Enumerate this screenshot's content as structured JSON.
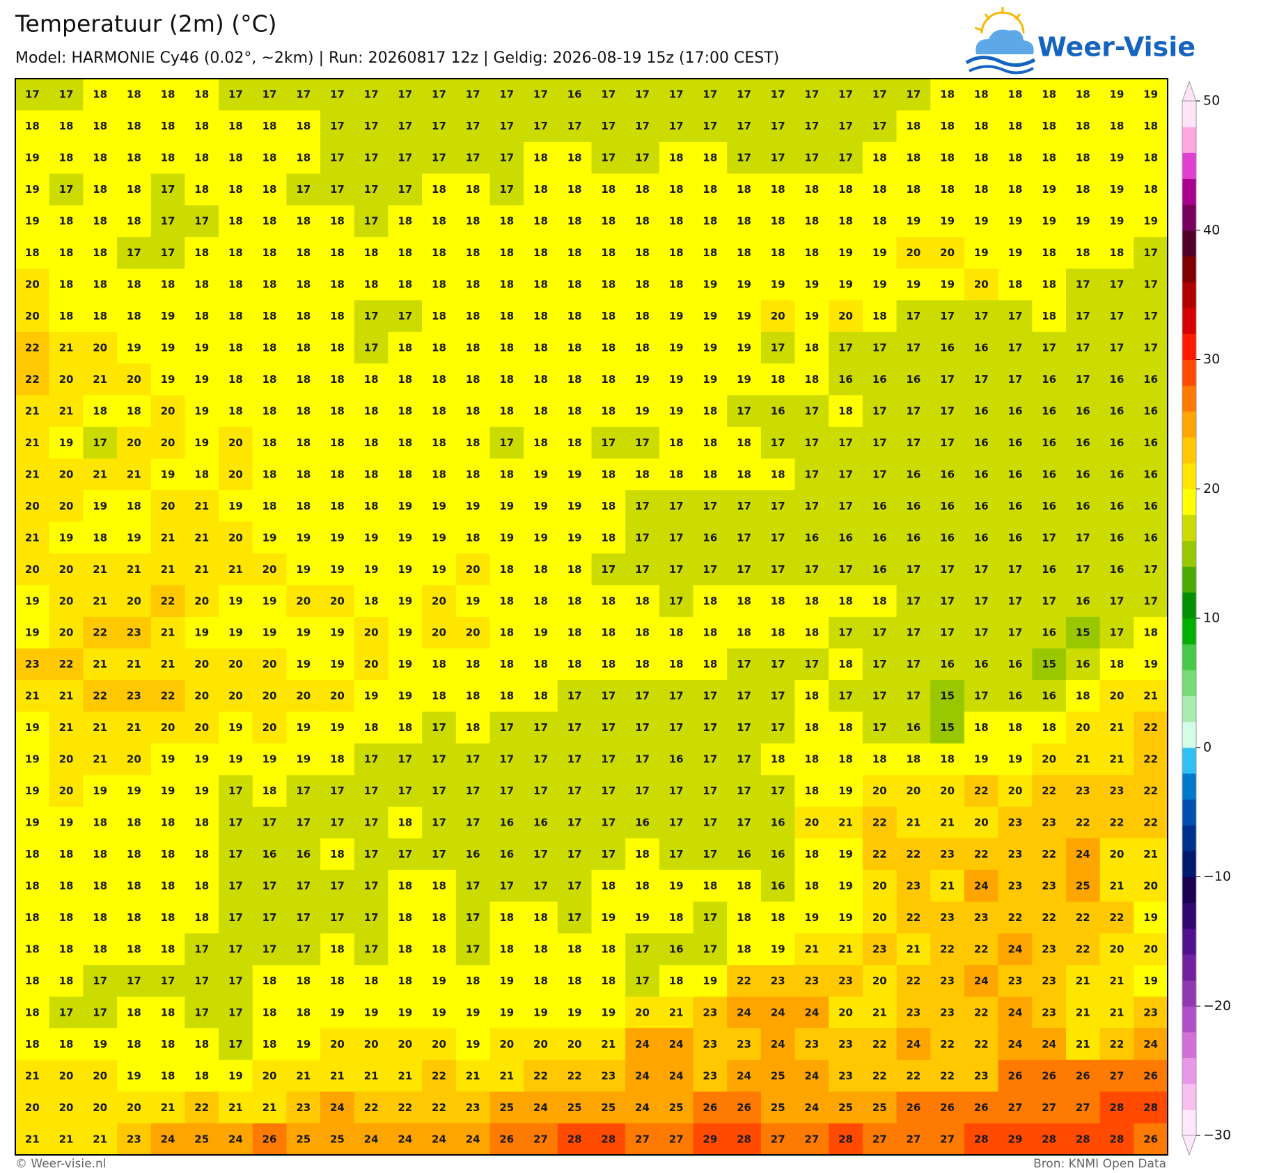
{
  "header": {
    "title": "Temperatuur (2m) (°C)",
    "subtitle": "Model: HARMONIE Cy46 (0.02°, ~2km)  |  Run: 20260817 12z  |  Geldig: 2026-08-19 15z (17:00 CEST)"
  },
  "logo": {
    "text": "Weer-Visie"
  },
  "grid": {
    "rows": [
      [
        17,
        17,
        18,
        18,
        18,
        18,
        17,
        17,
        17,
        17,
        17,
        17,
        17,
        17,
        17,
        17,
        16,
        17,
        17,
        17,
        17,
        17,
        17,
        17,
        17,
        17,
        17,
        18,
        18,
        18,
        18,
        18,
        19,
        19
      ],
      [
        18,
        18,
        18,
        18,
        18,
        18,
        18,
        18,
        18,
        17,
        17,
        17,
        17,
        17,
        17,
        17,
        17,
        17,
        17,
        17,
        17,
        17,
        17,
        17,
        17,
        17,
        18,
        18,
        18,
        18,
        18,
        18,
        18,
        18
      ],
      [
        19,
        18,
        18,
        18,
        18,
        18,
        18,
        18,
        18,
        17,
        17,
        17,
        17,
        17,
        17,
        18,
        18,
        17,
        17,
        18,
        18,
        17,
        17,
        17,
        17,
        18,
        18,
        18,
        18,
        18,
        18,
        18,
        19,
        18
      ],
      [
        19,
        17,
        18,
        18,
        17,
        18,
        18,
        18,
        17,
        17,
        17,
        17,
        18,
        18,
        17,
        18,
        18,
        18,
        18,
        18,
        18,
        18,
        18,
        18,
        18,
        18,
        18,
        18,
        18,
        18,
        19,
        18,
        19,
        18
      ],
      [
        19,
        18,
        18,
        18,
        17,
        17,
        18,
        18,
        18,
        18,
        17,
        18,
        18,
        18,
        18,
        18,
        18,
        18,
        18,
        18,
        18,
        18,
        18,
        18,
        18,
        18,
        19,
        19,
        19,
        19,
        19,
        19,
        19,
        19
      ],
      [
        18,
        18,
        18,
        17,
        17,
        18,
        18,
        18,
        18,
        18,
        18,
        18,
        18,
        18,
        18,
        18,
        18,
        18,
        18,
        18,
        18,
        18,
        18,
        18,
        19,
        19,
        20,
        20,
        19,
        19,
        18,
        18,
        18,
        17
      ],
      [
        20,
        18,
        18,
        18,
        18,
        18,
        18,
        18,
        18,
        18,
        18,
        18,
        18,
        18,
        18,
        18,
        18,
        18,
        18,
        18,
        19,
        19,
        19,
        19,
        19,
        19,
        19,
        19,
        20,
        18,
        18,
        17,
        17,
        17
      ],
      [
        20,
        18,
        18,
        18,
        19,
        18,
        18,
        18,
        18,
        18,
        17,
        17,
        18,
        18,
        18,
        18,
        18,
        18,
        18,
        19,
        19,
        19,
        20,
        19,
        20,
        18,
        17,
        17,
        17,
        17,
        18,
        17,
        17,
        17
      ],
      [
        22,
        21,
        20,
        19,
        19,
        19,
        18,
        18,
        18,
        18,
        17,
        18,
        18,
        18,
        18,
        18,
        18,
        18,
        18,
        19,
        19,
        19,
        17,
        18,
        17,
        17,
        17,
        16,
        16,
        17,
        17,
        17,
        17,
        17
      ],
      [
        22,
        20,
        21,
        20,
        19,
        19,
        18,
        18,
        18,
        18,
        18,
        18,
        18,
        18,
        18,
        18,
        18,
        18,
        19,
        19,
        19,
        19,
        18,
        18,
        16,
        16,
        16,
        17,
        17,
        17,
        16,
        17,
        16,
        16
      ],
      [
        21,
        21,
        18,
        18,
        20,
        19,
        18,
        18,
        18,
        18,
        18,
        18,
        18,
        18,
        18,
        18,
        18,
        18,
        19,
        19,
        18,
        17,
        16,
        17,
        18,
        17,
        17,
        17,
        16,
        16,
        16,
        16,
        16,
        16
      ],
      [
        21,
        19,
        17,
        20,
        20,
        19,
        20,
        18,
        18,
        18,
        18,
        18,
        18,
        18,
        17,
        18,
        18,
        17,
        17,
        18,
        18,
        18,
        17,
        17,
        17,
        17,
        17,
        17,
        16,
        16,
        16,
        16,
        16,
        16
      ],
      [
        21,
        20,
        21,
        21,
        19,
        18,
        20,
        18,
        18,
        18,
        18,
        18,
        18,
        18,
        18,
        19,
        19,
        18,
        18,
        18,
        18,
        18,
        18,
        17,
        17,
        17,
        16,
        16,
        16,
        16,
        16,
        16,
        16,
        16
      ],
      [
        20,
        20,
        19,
        18,
        20,
        21,
        19,
        18,
        18,
        18,
        18,
        19,
        19,
        19,
        19,
        19,
        19,
        18,
        17,
        17,
        17,
        17,
        17,
        17,
        17,
        16,
        16,
        16,
        16,
        16,
        16,
        16,
        16,
        16
      ],
      [
        21,
        19,
        18,
        19,
        21,
        21,
        20,
        19,
        19,
        19,
        19,
        19,
        19,
        18,
        19,
        19,
        19,
        18,
        17,
        17,
        16,
        17,
        17,
        16,
        16,
        16,
        16,
        16,
        16,
        16,
        17,
        17,
        16,
        16
      ],
      [
        20,
        20,
        21,
        21,
        21,
        21,
        21,
        20,
        19,
        19,
        19,
        19,
        19,
        20,
        18,
        18,
        18,
        17,
        17,
        17,
        17,
        17,
        17,
        17,
        17,
        16,
        17,
        17,
        17,
        17,
        16,
        17,
        16,
        17
      ],
      [
        19,
        20,
        21,
        20,
        22,
        20,
        19,
        19,
        20,
        20,
        18,
        19,
        20,
        19,
        18,
        18,
        18,
        18,
        18,
        17,
        18,
        18,
        18,
        18,
        18,
        18,
        17,
        17,
        17,
        17,
        17,
        16,
        17,
        17
      ],
      [
        19,
        20,
        22,
        23,
        21,
        19,
        19,
        19,
        19,
        19,
        20,
        19,
        20,
        20,
        18,
        19,
        18,
        18,
        18,
        18,
        18,
        18,
        18,
        18,
        17,
        17,
        17,
        17,
        17,
        17,
        16,
        15,
        17,
        18
      ],
      [
        23,
        22,
        21,
        21,
        21,
        20,
        20,
        20,
        19,
        19,
        20,
        19,
        18,
        18,
        18,
        18,
        18,
        18,
        18,
        18,
        18,
        17,
        17,
        17,
        18,
        17,
        17,
        16,
        16,
        16,
        15,
        16,
        18,
        19
      ],
      [
        21,
        21,
        22,
        23,
        22,
        20,
        20,
        20,
        20,
        20,
        19,
        19,
        18,
        18,
        18,
        18,
        17,
        17,
        17,
        17,
        17,
        17,
        17,
        18,
        17,
        17,
        17,
        15,
        17,
        16,
        16,
        18,
        20,
        21
      ],
      [
        19,
        21,
        21,
        21,
        20,
        20,
        19,
        20,
        19,
        19,
        18,
        18,
        17,
        18,
        17,
        17,
        17,
        17,
        17,
        17,
        17,
        17,
        17,
        18,
        18,
        17,
        16,
        15,
        18,
        18,
        18,
        20,
        21,
        22
      ],
      [
        19,
        20,
        21,
        20,
        19,
        19,
        19,
        19,
        19,
        18,
        17,
        17,
        17,
        17,
        17,
        17,
        17,
        17,
        17,
        16,
        17,
        17,
        18,
        18,
        18,
        18,
        18,
        18,
        19,
        19,
        20,
        21,
        21,
        22
      ],
      [
        19,
        20,
        19,
        19,
        19,
        19,
        17,
        18,
        17,
        17,
        17,
        17,
        17,
        17,
        17,
        17,
        17,
        17,
        17,
        17,
        17,
        17,
        17,
        18,
        19,
        20,
        20,
        20,
        22,
        20,
        22,
        23,
        23,
        22
      ],
      [
        19,
        19,
        18,
        18,
        18,
        18,
        17,
        17,
        17,
        17,
        17,
        18,
        17,
        17,
        16,
        16,
        17,
        17,
        16,
        17,
        17,
        17,
        16,
        20,
        21,
        22,
        21,
        21,
        20,
        23,
        23,
        22,
        22,
        22
      ],
      [
        18,
        18,
        18,
        18,
        18,
        18,
        17,
        16,
        16,
        18,
        17,
        17,
        17,
        16,
        16,
        17,
        17,
        17,
        18,
        17,
        17,
        16,
        16,
        18,
        19,
        22,
        22,
        23,
        22,
        23,
        22,
        24,
        20,
        21
      ],
      [
        18,
        18,
        18,
        18,
        18,
        18,
        17,
        17,
        17,
        17,
        17,
        18,
        18,
        17,
        17,
        17,
        17,
        18,
        18,
        19,
        18,
        18,
        16,
        18,
        19,
        20,
        23,
        21,
        24,
        23,
        23,
        25,
        21,
        20
      ],
      [
        18,
        18,
        18,
        18,
        18,
        18,
        17,
        17,
        17,
        17,
        17,
        18,
        18,
        17,
        18,
        18,
        17,
        19,
        19,
        18,
        17,
        18,
        18,
        19,
        19,
        20,
        22,
        23,
        23,
        22,
        22,
        22,
        22,
        19
      ],
      [
        18,
        18,
        18,
        18,
        18,
        17,
        17,
        17,
        17,
        18,
        17,
        18,
        18,
        17,
        18,
        18,
        18,
        18,
        17,
        16,
        17,
        18,
        19,
        21,
        21,
        23,
        21,
        22,
        22,
        24,
        23,
        22,
        20,
        20
      ],
      [
        18,
        18,
        17,
        17,
        17,
        17,
        17,
        18,
        18,
        18,
        18,
        18,
        19,
        18,
        19,
        18,
        18,
        18,
        17,
        18,
        19,
        22,
        23,
        23,
        23,
        20,
        22,
        23,
        24,
        23,
        23,
        21,
        21,
        19
      ],
      [
        18,
        17,
        17,
        18,
        18,
        17,
        17,
        18,
        18,
        19,
        19,
        19,
        19,
        19,
        19,
        19,
        19,
        19,
        20,
        21,
        23,
        24,
        24,
        24,
        20,
        21,
        23,
        23,
        22,
        24,
        23,
        21,
        21,
        23
      ],
      [
        18,
        18,
        19,
        18,
        18,
        18,
        17,
        18,
        19,
        20,
        20,
        20,
        20,
        19,
        20,
        20,
        20,
        21,
        24,
        24,
        23,
        23,
        24,
        23,
        23,
        22,
        24,
        22,
        22,
        24,
        24,
        21,
        22,
        24
      ],
      [
        21,
        20,
        20,
        19,
        18,
        18,
        19,
        20,
        21,
        21,
        21,
        21,
        22,
        21,
        21,
        22,
        22,
        23,
        24,
        24,
        23,
        24,
        25,
        24,
        23,
        22,
        22,
        22,
        23,
        26,
        26,
        26,
        27,
        26
      ],
      [
        20,
        20,
        20,
        20,
        21,
        22,
        21,
        21,
        23,
        24,
        22,
        22,
        22,
        23,
        25,
        24,
        25,
        25,
        24,
        25,
        26,
        26,
        25,
        24,
        25,
        25,
        26,
        26,
        26,
        27,
        27,
        27,
        28,
        28
      ],
      [
        21,
        21,
        21,
        23,
        24,
        25,
        24,
        26,
        25,
        25,
        24,
        24,
        24,
        24,
        26,
        27,
        28,
        28,
        27,
        27,
        29,
        28,
        27,
        27,
        28,
        27,
        27,
        27,
        28,
        29,
        28,
        28,
        28,
        26
      ]
    ]
  },
  "colorscale": {
    "min": -30,
    "max": 50,
    "step": 2,
    "colors": [
      "#fde8fd",
      "#f8c0f0",
      "#e898e8",
      "#d070d8",
      "#b050c8",
      "#9038b0",
      "#7020a0",
      "#501090",
      "#300870",
      "#1a0050",
      "#001a70",
      "#00308e",
      "#0050b0",
      "#0078cc",
      "#30c0f4",
      "#d4fde8",
      "#a8ecb0",
      "#78dc78",
      "#48c848",
      "#00b000",
      "#009000",
      "#4caa00",
      "#99c800",
      "#ccdc00",
      "#ffff00",
      "#ffe600",
      "#ffc800",
      "#ffa500",
      "#ff7a00",
      "#ff4a00",
      "#ff1a00",
      "#d80000",
      "#b00000",
      "#800000",
      "#50002a",
      "#7a0060",
      "#aa0090",
      "#e040d0",
      "#ffa8e0",
      "#ffe4f8"
    ],
    "ticks": [
      50,
      40,
      30,
      20,
      10,
      0,
      {
        "value": -10,
        "label": "−10"
      },
      {
        "value": -20,
        "label": "−20"
      },
      {
        "value": -30,
        "label": "−30"
      }
    ]
  },
  "footer": {
    "left": "© Weer-visie.nl",
    "right": "Bron: KNMI Open Data"
  }
}
